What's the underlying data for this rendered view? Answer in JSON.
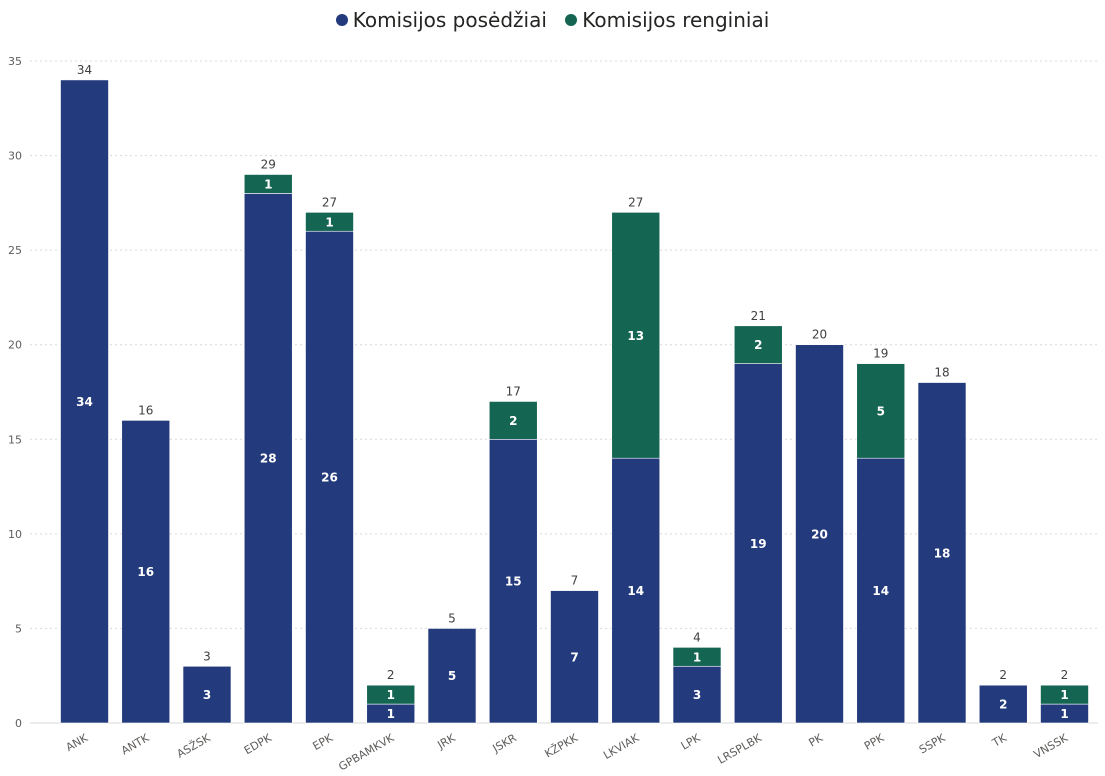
{
  "chart_data": {
    "type": "bar",
    "stacked": true,
    "categories": [
      "ANK",
      "ANTK",
      "ASŽSK",
      "EDPK",
      "EPK",
      "GPBAMKVK",
      "JRK",
      "JSKR",
      "KŽPKK",
      "LKVIAK",
      "LPK",
      "LRSPLBK",
      "PK",
      "PPK",
      "SSPK",
      "TK",
      "VNSSK"
    ],
    "series": [
      {
        "name": "Komisijos posėdžiai",
        "color": "#233b7c",
        "values": [
          34,
          16,
          3,
          28,
          26,
          1,
          5,
          15,
          7,
          14,
          3,
          19,
          20,
          14,
          18,
          2,
          1
        ]
      },
      {
        "name": "Komisijos renginiai",
        "color": "#146552",
        "values": [
          0,
          0,
          0,
          1,
          1,
          1,
          0,
          2,
          0,
          13,
          1,
          2,
          0,
          5,
          0,
          0,
          1
        ]
      }
    ],
    "totals": [
      34,
      16,
      3,
      29,
      27,
      2,
      5,
      17,
      7,
      27,
      4,
      21,
      20,
      19,
      18,
      2,
      2
    ],
    "ylim": [
      0,
      35
    ],
    "yticks": [
      0,
      5,
      10,
      15,
      20,
      25,
      30,
      35
    ],
    "grid": true,
    "legend_position": "top-center",
    "title": "",
    "xlabel": "",
    "ylabel": ""
  }
}
